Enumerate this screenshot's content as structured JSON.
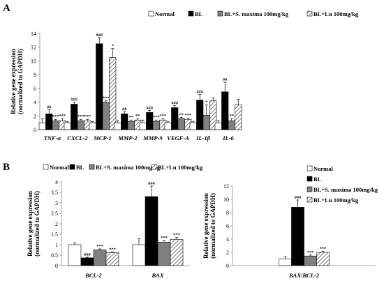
{
  "figure": {
    "panel_a_letter": "A",
    "panel_b_letter": "B"
  },
  "legend": {
    "entries": [
      "Normal",
      "BL",
      "BL+S. maxima 100mg/kg",
      "BL+Lu 100mg/kg"
    ],
    "colors": [
      "#ffffff",
      "#000000",
      "#808080",
      "hatched"
    ]
  },
  "chart_data": [
    {
      "type": "bar",
      "panel": "A",
      "ylabel": "Relative gene expression (normalized to GAPDH)",
      "ylabel_line1": "Relative gene expression",
      "ylabel_line2": "(normalized to GAPDH)",
      "ylim": [
        0,
        14
      ],
      "yticks": [
        0,
        2,
        4,
        6,
        8,
        10,
        12,
        14
      ],
      "categories": [
        "TNF-α",
        "CXCL-2",
        "MCP-1",
        "MMP-2",
        "MMP-9",
        "VEGF-A",
        "IL-1β",
        "IL-6"
      ],
      "series": [
        {
          "name": "Normal",
          "values": [
            1.0,
            1.0,
            1.0,
            1.0,
            1.0,
            1.0,
            1.0,
            1.0
          ],
          "errors": [
            0.6,
            0.2,
            0.15,
            0.3,
            0.4,
            0.2,
            0.2,
            0.3
          ]
        },
        {
          "name": "BL",
          "values": [
            2.3,
            3.7,
            12.5,
            2.3,
            2.5,
            3.2,
            4.3,
            5.5
          ],
          "errors": [
            0.6,
            0.3,
            0.9,
            0.3,
            0.3,
            0.3,
            0.8,
            1.4
          ]
        },
        {
          "name": "BL+S. maxima 100mg/kg",
          "values": [
            1.3,
            1.3,
            4.0,
            1.2,
            1.2,
            1.6,
            2.1,
            1.3
          ],
          "errors": [
            0.2,
            0.2,
            0.2,
            0.2,
            0.2,
            0.2,
            1.5,
            0.3
          ]
        },
        {
          "name": "BL+Lu 100mg/kg",
          "values": [
            1.3,
            1.3,
            10.5,
            1.4,
            1.4,
            1.5,
            4.2,
            3.6
          ],
          "errors": [
            0.3,
            0.2,
            1.3,
            0.2,
            0.2,
            0.2,
            0.4,
            0.8
          ]
        }
      ],
      "annotations": [
        [
          "",
          "##",
          "***",
          "***"
        ],
        [
          "",
          "###",
          "***",
          "***"
        ],
        [
          "",
          "###",
          "***",
          "*"
        ],
        [
          "",
          "##",
          "**",
          "**"
        ],
        [
          "",
          "###",
          "***",
          "***"
        ],
        [
          "",
          "###",
          "**",
          "***"
        ],
        [
          "",
          "###",
          "*",
          ""
        ],
        [
          "",
          "##",
          "**",
          ""
        ]
      ]
    },
    {
      "type": "bar",
      "panel": "B-left",
      "ylabel": "Relative gene expression (normalized to GAPDH)",
      "ylabel_line1": "Relative gene expression",
      "ylabel_line2": "(normalized to GAPDH)",
      "ylim": [
        0,
        4
      ],
      "yticks": [
        "0",
        "0.5",
        "1",
        "1.5",
        "2",
        "2.5",
        "3",
        "3.5",
        "4"
      ],
      "categories": [
        "BCL-2",
        "BAX"
      ],
      "series": [
        {
          "name": "Normal",
          "values": [
            1.0,
            1.0
          ],
          "errors": [
            0.08,
            0.28
          ]
        },
        {
          "name": "BL",
          "values": [
            0.37,
            3.3
          ],
          "errors": [
            0.03,
            0.5
          ]
        },
        {
          "name": "BL+S. maxima 100mg/kg",
          "values": [
            0.75,
            1.12
          ],
          "errors": [
            0.05,
            0.08
          ]
        },
        {
          "name": "BL+Lu 100mg/kg",
          "values": [
            0.62,
            1.25
          ],
          "errors": [
            0.03,
            0.1
          ]
        }
      ],
      "annotations": [
        [
          "",
          "###",
          "***",
          "***"
        ],
        [
          "",
          "###",
          "***",
          "***"
        ]
      ]
    },
    {
      "type": "bar",
      "panel": "B-right",
      "ylabel": "Relative gene expression (normalized to GAPDH)",
      "ylabel_line1": "Relative gene expression",
      "ylabel_line2": "(normalized to GAPDH)",
      "ylim": [
        0,
        12
      ],
      "yticks": [
        0,
        2,
        4,
        6,
        8,
        10,
        12
      ],
      "categories": [
        "BAX/BCL-2"
      ],
      "series": [
        {
          "name": "Normal",
          "values": [
            1.0
          ],
          "errors": [
            0.35
          ]
        },
        {
          "name": "BL",
          "values": [
            8.8
          ],
          "errors": [
            1.1
          ]
        },
        {
          "name": "BL+S. maxima 100mg/kg",
          "values": [
            1.45
          ],
          "errors": [
            0.15
          ]
        },
        {
          "name": "BL+Lu 100mg/kg",
          "values": [
            2.0
          ],
          "errors": [
            0.15
          ]
        }
      ],
      "annotations": [
        [
          "",
          "###",
          "***",
          "***"
        ]
      ]
    }
  ]
}
